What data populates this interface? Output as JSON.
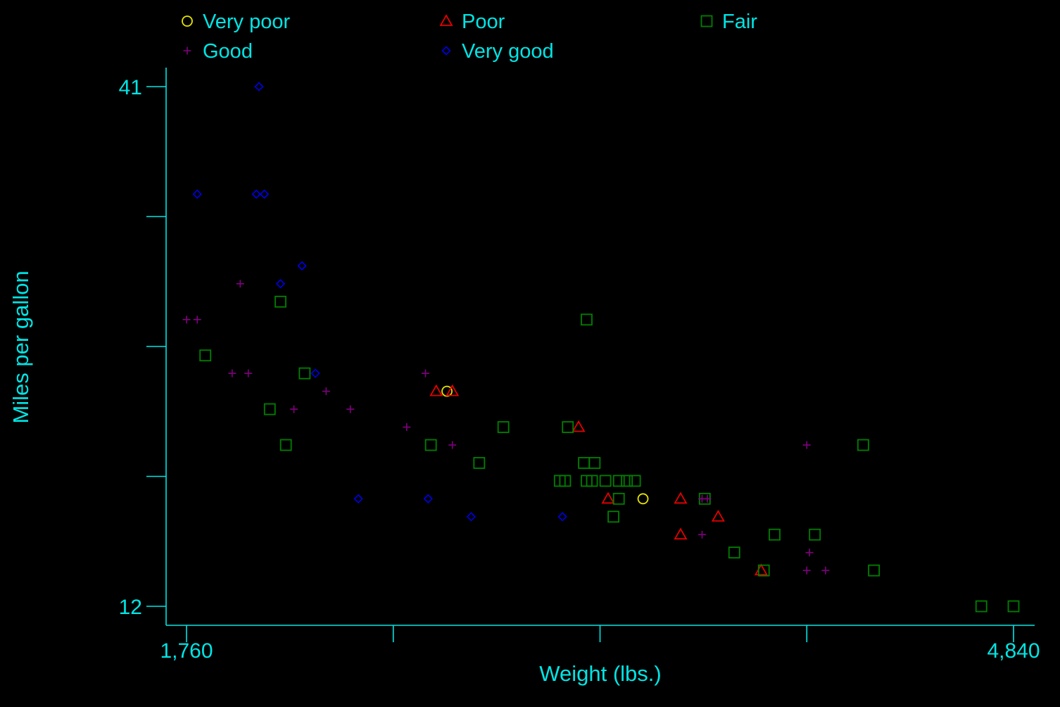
{
  "chart_data": {
    "type": "scatter",
    "title": "",
    "xlabel": "Weight (lbs.)",
    "ylabel": "Miles per gallon",
    "xlim": [
      1760,
      4840
    ],
    "ylim": [
      12,
      41
    ],
    "x_ticks": [
      1760,
      2530,
      3300,
      4070,
      4840
    ],
    "x_tick_labels": [
      "1,760",
      "",
      "",
      "",
      "4,840"
    ],
    "y_ticks": [
      12,
      19.25,
      26.5,
      33.75,
      41
    ],
    "y_tick_labels": [
      "12",
      "",
      "",
      "",
      "41"
    ],
    "grid": false,
    "legend_position": "top",
    "colors": {
      "background": "#000000",
      "axis": "#00e5e5",
      "very_poor": "#e5e500",
      "poor": "#e50000",
      "fair": "#008000",
      "good": "#800080",
      "very_good": "#0000e5"
    },
    "series": [
      {
        "name": "Very poor",
        "marker": "circle",
        "color": "#e5e500",
        "points": [
          [
            2730,
            24
          ],
          [
            3460,
            18
          ]
        ]
      },
      {
        "name": "Poor",
        "marker": "triangle",
        "color": "#e50000",
        "points": [
          [
            2690,
            24
          ],
          [
            2750,
            24
          ],
          [
            3220,
            22
          ],
          [
            3330,
            18
          ],
          [
            3600,
            18
          ],
          [
            3600,
            16
          ],
          [
            3740,
            17
          ],
          [
            3900,
            14
          ]
        ]
      },
      {
        "name": "Fair",
        "marker": "square",
        "color": "#008000",
        "points": [
          [
            2110,
            29
          ],
          [
            1830,
            26
          ],
          [
            2200,
            25
          ],
          [
            2070,
            23
          ],
          [
            2130,
            21
          ],
          [
            2670,
            21
          ],
          [
            2850,
            20
          ],
          [
            2940,
            22
          ],
          [
            3180,
            22
          ],
          [
            3240,
            20
          ],
          [
            3280,
            20
          ],
          [
            3150,
            19
          ],
          [
            3170,
            19
          ],
          [
            3250,
            19
          ],
          [
            3270,
            19
          ],
          [
            3320,
            19
          ],
          [
            3370,
            19
          ],
          [
            3400,
            19
          ],
          [
            3430,
            19
          ],
          [
            3370,
            18
          ],
          [
            3350,
            17
          ],
          [
            3690,
            18
          ],
          [
            3250,
            28
          ],
          [
            3800,
            15
          ],
          [
            3910,
            14
          ],
          [
            3950,
            16
          ],
          [
            4100,
            16
          ],
          [
            4280,
            21
          ],
          [
            4320,
            14
          ],
          [
            4720,
            12
          ],
          [
            4840,
            12
          ]
        ]
      },
      {
        "name": "Good",
        "marker": "plus",
        "color": "#800080",
        "points": [
          [
            1760,
            28
          ],
          [
            1800,
            28
          ],
          [
            1960,
            30
          ],
          [
            1930,
            25
          ],
          [
            1990,
            25
          ],
          [
            2160,
            23
          ],
          [
            2280,
            24
          ],
          [
            2370,
            23
          ],
          [
            2580,
            22
          ],
          [
            2650,
            25
          ],
          [
            2750,
            21
          ],
          [
            4070,
            21
          ],
          [
            3700,
            18
          ],
          [
            3680,
            18
          ],
          [
            3680,
            16
          ],
          [
            4080,
            15
          ],
          [
            4070,
            14
          ],
          [
            4140,
            14
          ]
        ]
      },
      {
        "name": "Very good",
        "marker": "diamond",
        "color": "#0000e5",
        "points": [
          [
            2030,
            41
          ],
          [
            1800,
            35
          ],
          [
            2020,
            35
          ],
          [
            2050,
            35
          ],
          [
            2190,
            31
          ],
          [
            2110,
            30
          ],
          [
            2240,
            25
          ],
          [
            2400,
            18
          ],
          [
            2660,
            18
          ],
          [
            2820,
            17
          ],
          [
            3160,
            17
          ]
        ]
      }
    ]
  }
}
